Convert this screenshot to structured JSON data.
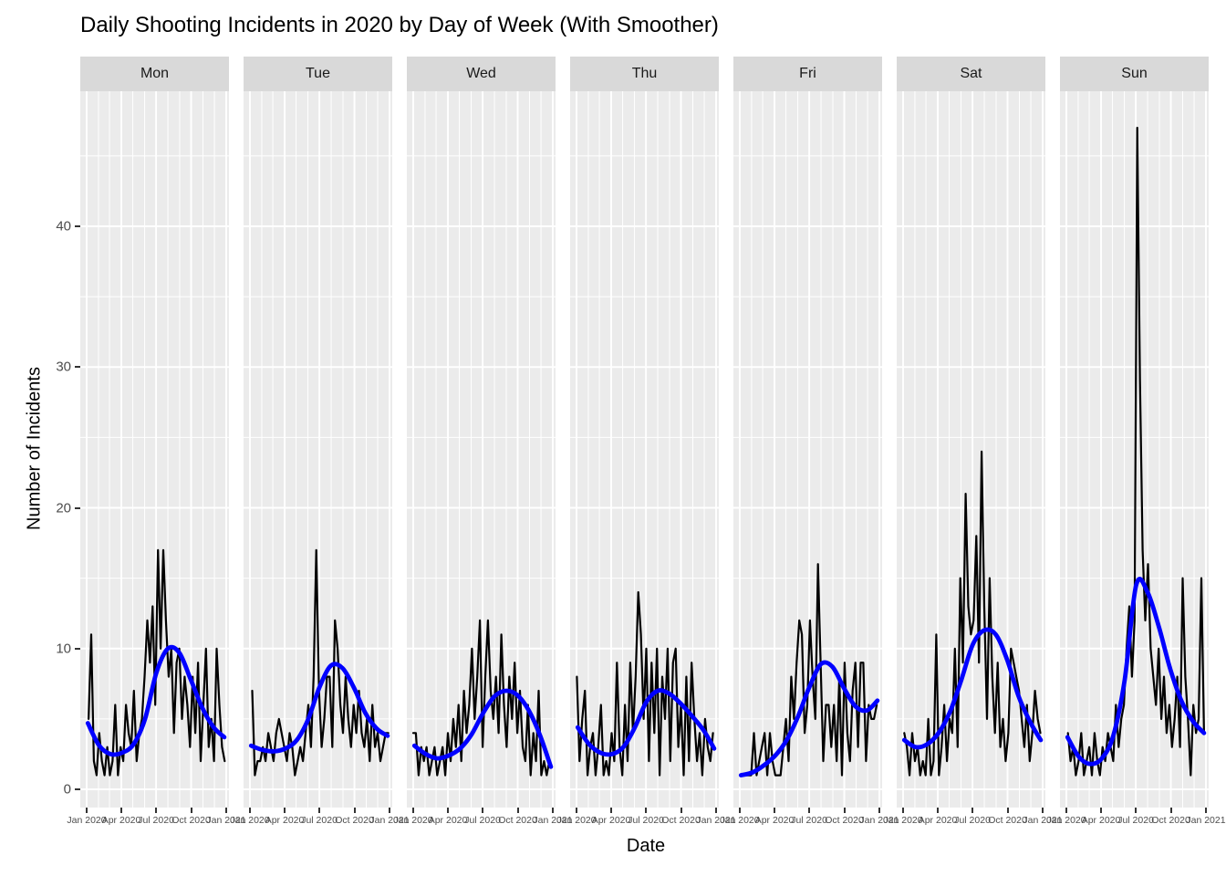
{
  "title": "Daily Shooting Incidents in 2020 by Day of Week (With Smoother)",
  "y_axis": {
    "label": "Number of Incidents",
    "ticks": [
      0,
      10,
      20,
      30,
      40
    ]
  },
  "x_axis": {
    "label": "Date",
    "tick_labels": [
      "Jan 2020",
      "Apr 2020",
      "Jul 2020",
      "Oct 2020",
      "Jan 2021"
    ]
  },
  "theme": {
    "panel_background": "#ebebeb",
    "strip_background": "#d9d9d9",
    "grid_color": "#ffffff",
    "tick_label_color": "#4d4d4d",
    "incidents_line_color": "#000000",
    "smoother_line_color": "#0000ff"
  },
  "chart_data": {
    "type": "line",
    "title": "Daily Shooting Incidents in 2020 by Day of Week (With Smoother)",
    "xlabel": "Date",
    "ylabel": "Number of Incidents",
    "ylim": [
      0,
      47
    ],
    "x_range": [
      "Jan 2020",
      "Jan 2021"
    ],
    "x_tick_labels": [
      "Jan 2020",
      "Apr 2020",
      "Jul 2020",
      "Oct 2020",
      "Jan 2021"
    ],
    "x_tick_days": [
      0,
      91,
      182,
      274,
      366
    ],
    "month_grid_days": [
      0,
      31,
      60,
      91,
      121,
      152,
      182,
      213,
      244,
      274,
      305,
      335,
      366
    ],
    "grid": "on",
    "legend": "none",
    "note": "Black line = daily incident counts sampled weekly per weekday facet; blue line = loess smoother sampled monthly (values estimated from pixels)",
    "smoother_x_days": [
      3,
      33,
      63,
      93,
      123,
      153,
      183,
      213,
      243,
      273,
      303,
      333,
      361
    ],
    "facets": [
      {
        "label": "Mon",
        "start_day_offset": 5,
        "incidents": [
          5,
          11,
          2,
          1,
          4,
          2,
          1,
          3,
          1,
          2,
          6,
          1,
          3,
          2,
          6,
          4,
          3,
          7,
          2,
          4,
          5,
          8,
          12,
          9,
          13,
          6,
          17,
          10,
          17,
          12,
          8,
          10,
          4,
          9,
          10,
          5,
          8,
          6,
          3,
          8,
          4,
          9,
          2,
          6,
          10,
          3,
          5,
          2,
          10,
          6,
          3,
          2
        ],
        "smoother": [
          4.7,
          3.1,
          2.5,
          2.6,
          3.2,
          5.0,
          8.3,
          10.0,
          9.7,
          7.8,
          5.8,
          4.4,
          3.7
        ]
      },
      {
        "label": "Tue",
        "start_day_offset": 6,
        "incidents": [
          7,
          1,
          2,
          2,
          3,
          2,
          4,
          3,
          2,
          4,
          5,
          4,
          3,
          2,
          4,
          3,
          1,
          2,
          3,
          2,
          4,
          6,
          3,
          8,
          17,
          7,
          3,
          5,
          8,
          8,
          3,
          12,
          10,
          6,
          4,
          8,
          5,
          3,
          6,
          4,
          7,
          4,
          3,
          5,
          2,
          6,
          3,
          4,
          2,
          3,
          4,
          4
        ],
        "smoother": [
          3.1,
          2.8,
          2.7,
          2.9,
          3.5,
          5.0,
          7.3,
          8.8,
          8.6,
          7.2,
          5.4,
          4.3,
          3.8
        ]
      },
      {
        "label": "Wed",
        "start_day_offset": 0,
        "incidents": [
          4,
          4,
          1,
          3,
          2,
          3,
          1,
          2,
          3,
          1,
          2,
          3,
          1,
          4,
          2,
          5,
          3,
          6,
          2,
          7,
          4,
          6,
          10,
          5,
          8,
          12,
          3,
          8,
          12,
          7,
          5,
          8,
          4,
          11,
          6,
          3,
          8,
          5,
          9,
          4,
          7,
          3,
          2,
          6,
          1,
          4,
          2,
          7,
          1,
          2,
          1,
          2
        ],
        "smoother": [
          3.1,
          2.5,
          2.2,
          2.4,
          2.9,
          3.9,
          5.4,
          6.6,
          7.0,
          6.7,
          5.6,
          3.8,
          1.6
        ]
      },
      {
        "label": "Thu",
        "start_day_offset": 1,
        "incidents": [
          8,
          2,
          5,
          7,
          1,
          3,
          4,
          1,
          3,
          6,
          1,
          2,
          1,
          4,
          2,
          9,
          3,
          1,
          6,
          2,
          9,
          4,
          8,
          14,
          11,
          5,
          10,
          2,
          9,
          4,
          10,
          1,
          8,
          5,
          10,
          2,
          9,
          10,
          3,
          6,
          1,
          8,
          2,
          9,
          5,
          2,
          4,
          1,
          5,
          3,
          2,
          4
        ],
        "smoother": [
          4.4,
          3.2,
          2.6,
          2.5,
          3.0,
          4.4,
          6.2,
          7.0,
          6.8,
          6.1,
          5.2,
          4.2,
          2.9
        ]
      },
      {
        "label": "Fri",
        "start_day_offset": 2,
        "incidents": [
          1,
          1,
          1,
          1,
          1,
          4,
          1,
          2,
          3,
          4,
          1,
          4,
          2,
          1,
          1,
          1,
          3,
          5,
          2,
          8,
          5,
          9,
          12,
          11,
          4,
          6,
          12,
          8,
          5,
          16,
          9,
          2,
          6,
          6,
          3,
          6,
          2,
          8,
          1,
          9,
          4,
          2,
          7,
          9,
          3,
          9,
          9,
          2,
          6,
          5,
          5,
          6
        ],
        "smoother": [
          1.0,
          1.2,
          1.7,
          2.4,
          3.5,
          5.2,
          7.3,
          8.9,
          8.7,
          7.2,
          5.9,
          5.6,
          6.3
        ]
      },
      {
        "label": "Sat",
        "start_day_offset": 3,
        "incidents": [
          4,
          3,
          1,
          4,
          2,
          3,
          1,
          2,
          1,
          5,
          1,
          2,
          11,
          1,
          3,
          6,
          2,
          5,
          4,
          10,
          3,
          15,
          9,
          21,
          13,
          11,
          12,
          18,
          9,
          24,
          13,
          5,
          15,
          8,
          4,
          9,
          3,
          5,
          2,
          4,
          10,
          9,
          8,
          7,
          5,
          3,
          6,
          2,
          4,
          7,
          5,
          4
        ],
        "smoother": [
          3.5,
          3.0,
          3.2,
          4.0,
          5.5,
          7.8,
          10.3,
          11.3,
          11.0,
          9.2,
          6.6,
          4.8,
          3.5
        ]
      },
      {
        "label": "Sun",
        "start_day_offset": 4,
        "incidents": [
          4,
          2,
          3,
          1,
          2,
          4,
          1,
          2,
          3,
          1,
          4,
          2,
          1,
          3,
          2,
          4,
          3,
          2,
          6,
          3,
          5,
          6,
          10,
          13,
          8,
          12,
          47,
          29,
          17,
          12,
          16,
          10,
          8,
          6,
          10,
          5,
          8,
          4,
          6,
          3,
          5,
          8,
          3,
          15,
          8,
          5,
          1,
          6,
          4,
          5,
          15,
          4
        ],
        "smoother": [
          3.7,
          2.3,
          1.8,
          2.2,
          3.8,
          7.8,
          14.5,
          14.0,
          11.5,
          8.5,
          6.2,
          4.8,
          4.0
        ]
      }
    ]
  }
}
